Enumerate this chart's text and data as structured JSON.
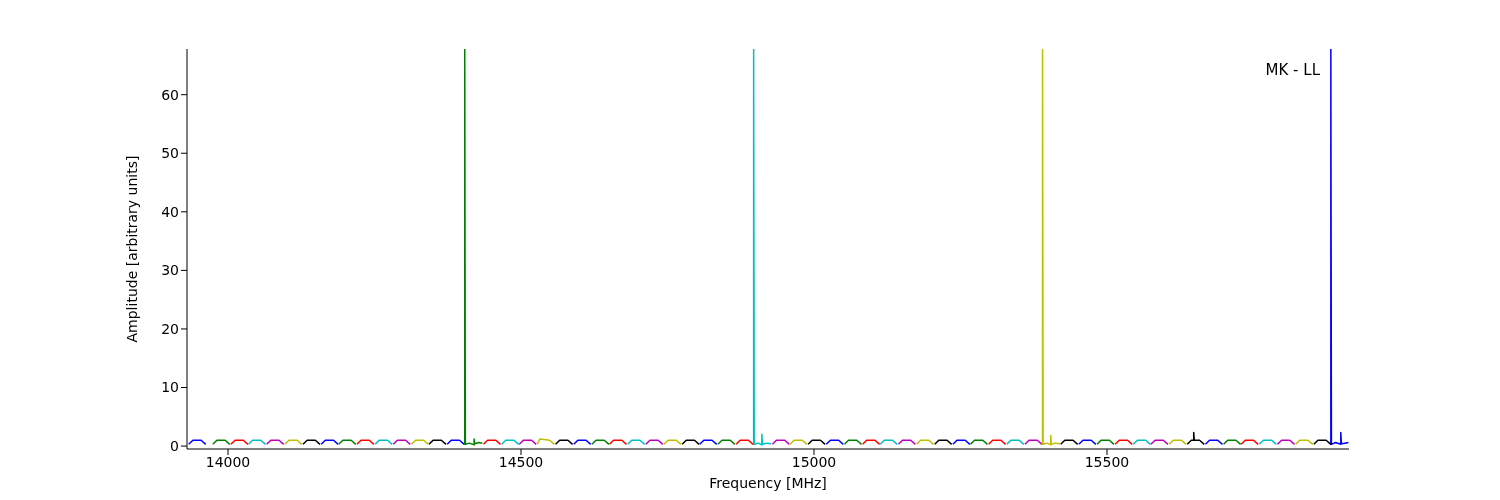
{
  "chart_data": {
    "type": "line",
    "xlabel": "Frequency [MHz]",
    "ylabel": "Amplitude [arbitrary units]",
    "xlim": [
      13930,
      15913
    ],
    "xticks": [
      14000,
      14500,
      15000,
      15500
    ],
    "ylim": [
      -0.5,
      67.8
    ],
    "yticks": [
      0,
      10,
      20,
      30,
      40,
      50,
      60
    ],
    "annotations": [
      "MK - LL"
    ],
    "series": [
      {
        "color": "#0000ff",
        "x": [
          13933,
          13940,
          13954,
          13962,
          13962.5,
          14159,
          14166,
          14180,
          14188,
          14188.5,
          14374,
          14381,
          14395,
          14403,
          14403.5,
          14590,
          14597,
          14611,
          14619,
          14619.5,
          14805,
          14812,
          14826,
          14834,
          14834.5,
          15021,
          15028,
          15042,
          15050,
          15050.5,
          15237,
          15244,
          15258,
          15266,
          15266.5,
          15452,
          15459,
          15473,
          15481,
          15481.5,
          15668,
          15675,
          15689,
          15697,
          15697.5,
          15882,
          15882,
          15883,
          15890,
          15899,
          15899,
          15900,
          15906,
          15912
        ],
        "values": [
          0.3,
          1,
          1,
          0.3,
          null,
          0.3,
          1,
          1,
          0.3,
          null,
          0.3,
          1,
          1,
          0.3,
          null,
          0.3,
          1,
          1,
          0.3,
          null,
          0.3,
          1,
          1,
          0.3,
          null,
          0.3,
          1,
          1,
          0.3,
          null,
          0.3,
          1,
          1,
          0.3,
          null,
          0.3,
          1,
          1,
          0.3,
          null,
          0.3,
          1,
          1,
          0.3,
          null,
          0.2,
          67.8,
          0.3,
          0.6,
          0.3,
          2.3,
          0.4,
          0.5,
          0.6
        ]
      },
      {
        "color": "#008000",
        "x": [
          13974,
          13981,
          13995,
          14003,
          14003.5,
          14189,
          14196,
          14210,
          14218,
          14218.5,
          14404,
          14404,
          14405,
          14412,
          14420,
          14420,
          14421,
          14428,
          14434,
          14434.5,
          14621,
          14628,
          14642,
          14650,
          14650.5,
          14836,
          14843,
          14857,
          14865,
          14865.5,
          15052,
          15059,
          15073,
          15081,
          15081.5,
          15267,
          15274,
          15288,
          15296,
          15296.5,
          15483,
          15490,
          15504,
          15512,
          15512.5,
          15699,
          15706,
          15720,
          15728
        ],
        "values": [
          0.3,
          1,
          1,
          0.3,
          null,
          0.3,
          1,
          1,
          0.3,
          null,
          0.2,
          67.8,
          0.3,
          0.5,
          0.2,
          1.2,
          0.4,
          0.6,
          0.5,
          null,
          0.3,
          1,
          1,
          0.3,
          null,
          0.3,
          1,
          1,
          0.3,
          null,
          0.3,
          1,
          1,
          0.3,
          null,
          0.3,
          1,
          1,
          0.3,
          null,
          0.3,
          1,
          1,
          0.3,
          null,
          0.3,
          1,
          1,
          0.3
        ]
      },
      {
        "color": "#ff0000",
        "x": [
          14005,
          14012,
          14026,
          14034,
          14034.5,
          14220,
          14227,
          14241,
          14249,
          14249.5,
          14436,
          14443,
          14457,
          14465,
          14465.5,
          14651,
          14658,
          14672,
          14680,
          14680.5,
          14867,
          14874,
          14888,
          14896,
          14896.5,
          15083,
          15090,
          15104,
          15112,
          15112.5,
          15298,
          15305,
          15319,
          15327,
          15327.5,
          15514,
          15521,
          15535,
          15543,
          15543.5,
          15729,
          15736,
          15750,
          15758
        ],
        "values": [
          0.3,
          1,
          1,
          0.3,
          null,
          0.3,
          1,
          1,
          0.3,
          null,
          0.3,
          1,
          1,
          0.3,
          null,
          0.3,
          1,
          1,
          0.3,
          null,
          0.3,
          1,
          1,
          0.3,
          null,
          0.3,
          1,
          1,
          0.3,
          null,
          0.3,
          1,
          1,
          0.3,
          null,
          0.3,
          1,
          1,
          0.3,
          null,
          0.3,
          1,
          1,
          0.3
        ]
      },
      {
        "color": "#00bfbf",
        "x": [
          14035,
          14042,
          14056,
          14064,
          14064.5,
          14251,
          14258,
          14272,
          14280,
          14280.5,
          14467,
          14474,
          14488,
          14496,
          14496.5,
          14682,
          14689,
          14703,
          14711,
          14711.5,
          14897,
          14897,
          14898,
          14905,
          14911,
          14911,
          14912,
          14920,
          14927,
          14927.5,
          15113,
          15120,
          15134,
          15142,
          15142.5,
          15329,
          15336,
          15350,
          15358,
          15358.5,
          15545,
          15552,
          15566,
          15574,
          15574.5,
          15760,
          15767,
          15781,
          15789
        ],
        "values": [
          0.3,
          1,
          1,
          0.3,
          null,
          0.3,
          1,
          1,
          0.3,
          null,
          0.3,
          1,
          1,
          0.3,
          null,
          0.3,
          1,
          1,
          0.3,
          null,
          0.2,
          67.8,
          0.3,
          0.5,
          0.2,
          2,
          0.3,
          0.5,
          0.4,
          null,
          0.3,
          1,
          1,
          0.3,
          null,
          0.3,
          1,
          1,
          0.3,
          null,
          0.3,
          1,
          1,
          0.3,
          null,
          0.3,
          1,
          1,
          0.3
        ]
      },
      {
        "color": "#bf00bf",
        "x": [
          14066,
          14073,
          14087,
          14095,
          14095.5,
          14282,
          14289,
          14303,
          14311,
          14311.5,
          14497,
          14504,
          14518,
          14526,
          14526.5,
          14713,
          14720,
          14734,
          14742,
          14742.5,
          14929,
          14936,
          14950,
          14958,
          14958.5,
          15144,
          15151,
          15165,
          15173,
          15173.5,
          15360,
          15367,
          15381,
          15389,
          15389.5,
          15575,
          15582,
          15596,
          15604,
          15604.5,
          15791,
          15798,
          15812,
          15820
        ],
        "values": [
          0.3,
          1,
          1,
          0.3,
          null,
          0.3,
          1,
          1,
          0.3,
          null,
          0.3,
          1,
          1,
          0.3,
          null,
          0.3,
          1,
          1,
          0.3,
          null,
          0.3,
          1,
          1,
          0.3,
          null,
          0.3,
          1,
          1,
          0.3,
          null,
          0.3,
          1,
          1,
          0.3,
          null,
          0.3,
          1,
          1,
          0.3,
          null,
          0.3,
          1,
          1,
          0.3
        ]
      },
      {
        "color": "#bfbf00",
        "x": [
          14097,
          14104,
          14118,
          14126,
          14126.5,
          14313,
          14320,
          14334,
          14342,
          14342.5,
          14528,
          14532,
          14549,
          14557,
          14557.5,
          14744,
          14751,
          14765,
          14773,
          14773.5,
          14959,
          14966,
          14980,
          14988,
          14988.5,
          15175,
          15182,
          15196,
          15204,
          15204.5,
          15390,
          15390,
          15391,
          15398,
          15404,
          15404,
          15405,
          15412,
          15420,
          15420.5,
          15606,
          15613,
          15627,
          15635,
          15635.5,
          15822,
          15829,
          15843,
          15851
        ],
        "values": [
          0.3,
          1,
          1,
          0.3,
          null,
          0.3,
          1,
          1,
          0.3,
          null,
          0.3,
          1.2,
          1,
          0.3,
          null,
          0.3,
          1,
          1,
          0.3,
          null,
          0.3,
          1,
          1,
          0.3,
          null,
          0.3,
          1,
          1,
          0.3,
          null,
          0.2,
          67.8,
          0.3,
          0.5,
          0.2,
          1.8,
          0.3,
          0.5,
          0.4,
          null,
          0.3,
          1,
          1,
          0.3,
          null,
          0.3,
          1,
          1,
          0.3
        ]
      },
      {
        "color": "#000000",
        "x": [
          14128,
          14135,
          14149,
          14157,
          14157.5,
          14343,
          14350,
          14364,
          14372,
          14372.5,
          14559,
          14566,
          14580,
          14588,
          14588.5,
          14775,
          14782,
          14796,
          14804,
          14804.5,
          14990,
          14997,
          15011,
          15019,
          15019.5,
          15206,
          15213,
          15227,
          15235,
          15235.5,
          15421,
          15428,
          15442,
          15450,
          15450.5,
          15637,
          15644,
          15648,
          15648,
          15649,
          15658,
          15666,
          15666.5,
          15853,
          15860,
          15874,
          15882
        ],
        "values": [
          0.3,
          1,
          1,
          0.3,
          null,
          0.3,
          1,
          1,
          0.3,
          null,
          0.3,
          1,
          1,
          0.3,
          null,
          0.3,
          1,
          1,
          0.3,
          null,
          0.3,
          1,
          1,
          0.3,
          null,
          0.3,
          1,
          1,
          0.3,
          null,
          0.3,
          1,
          1,
          0.3,
          null,
          0.3,
          1,
          1,
          2.3,
          1,
          1,
          0.3,
          null,
          0.3,
          1,
          1,
          0.3
        ]
      }
    ]
  }
}
